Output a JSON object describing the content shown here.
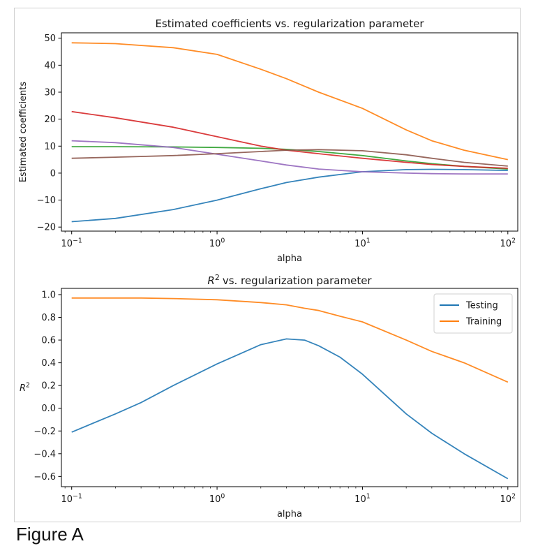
{
  "caption": "Figure A",
  "chart_data": [
    {
      "type": "line",
      "title": "Estimated coefficients vs. regularization parameter",
      "xlabel": "alpha",
      "ylabel": "Estimated coefficients",
      "xscale": "log",
      "xlim": [
        0.085,
        117
      ],
      "ylim": [
        -21.5,
        52
      ],
      "grid": false,
      "x_tick_values": [
        0.1,
        1,
        10,
        100
      ],
      "x_tick_labels": [
        {
          "base": "10",
          "exp": "−1"
        },
        {
          "base": "10",
          "exp": "0"
        },
        {
          "base": "10",
          "exp": "1"
        },
        {
          "base": "10",
          "exp": "2"
        }
      ],
      "y_tick_values": [
        -20,
        -10,
        0,
        10,
        20,
        30,
        40,
        50
      ],
      "y_tick_labels": [
        "−20",
        "−10",
        "0",
        "10",
        "20",
        "30",
        "40",
        "50"
      ],
      "x": [
        0.1,
        0.2,
        0.5,
        1,
        2,
        3,
        5,
        10,
        20,
        30,
        50,
        100
      ],
      "series": [
        {
          "color": "#1f77b4",
          "values": [
            -18,
            -16.8,
            -13.5,
            -10,
            -5.8,
            -3.5,
            -1.5,
            0.5,
            1.3,
            1.4,
            1.3,
            1.0
          ]
        },
        {
          "color": "#ff7f0e",
          "values": [
            48.3,
            48,
            46.5,
            44,
            38.5,
            35,
            30,
            24,
            16,
            12,
            8.5,
            5
          ]
        },
        {
          "color": "#2ca02c",
          "values": [
            9.8,
            9.8,
            9.7,
            9.5,
            9.2,
            8.8,
            8,
            6.5,
            4.5,
            3.5,
            2.5,
            1.5
          ]
        },
        {
          "color": "#d62728",
          "values": [
            22.8,
            20.5,
            17,
            13.5,
            10,
            8.5,
            7.2,
            5.5,
            4,
            3.2,
            2.5,
            1.8
          ]
        },
        {
          "color": "#9467bd",
          "values": [
            12,
            11.3,
            9.5,
            7,
            4.5,
            3,
            1.5,
            0.5,
            0,
            -0.2,
            -0.3,
            -0.3
          ]
        },
        {
          "color": "#8c564b",
          "values": [
            5.5,
            5.9,
            6.5,
            7.2,
            8,
            8.5,
            8.7,
            8.3,
            6.8,
            5.5,
            4,
            2.6
          ]
        }
      ]
    },
    {
      "type": "line",
      "title": "vs. regularization parameter",
      "title_math": {
        "base": "R",
        "exp": "2"
      },
      "xlabel": "alpha",
      "ylabel": {
        "base": "R",
        "exp": "2"
      },
      "xscale": "log",
      "xlim": [
        0.085,
        117
      ],
      "ylim": [
        -0.69,
        1.055
      ],
      "grid": false,
      "legend": "top-right",
      "x_tick_values": [
        0.1,
        1,
        10,
        100
      ],
      "x_tick_labels": [
        {
          "base": "10",
          "exp": "−1"
        },
        {
          "base": "10",
          "exp": "0"
        },
        {
          "base": "10",
          "exp": "1"
        },
        {
          "base": "10",
          "exp": "2"
        }
      ],
      "y_tick_values": [
        -0.6,
        -0.4,
        -0.2,
        0.0,
        0.2,
        0.4,
        0.6,
        0.8,
        1.0
      ],
      "y_tick_labels": [
        "−0.6",
        "−0.4",
        "−0.2",
        "0.0",
        "0.2",
        "0.4",
        "0.6",
        "0.8",
        "1.0"
      ],
      "x": [
        0.1,
        0.2,
        0.3,
        0.5,
        1,
        2,
        3,
        4,
        5,
        7,
        10,
        20,
        30,
        50,
        100
      ],
      "series": [
        {
          "name": "Testing",
          "color": "#1f77b4",
          "values": [
            -0.21,
            -0.05,
            0.05,
            0.2,
            0.39,
            0.56,
            0.61,
            0.6,
            0.55,
            0.45,
            0.3,
            -0.05,
            -0.22,
            -0.4,
            -0.62
          ]
        },
        {
          "name": "Training",
          "color": "#ff7f0e",
          "values": [
            0.97,
            0.97,
            0.97,
            0.965,
            0.955,
            0.93,
            0.91,
            0.88,
            0.86,
            0.81,
            0.76,
            0.6,
            0.5,
            0.4,
            0.23
          ]
        }
      ]
    }
  ]
}
